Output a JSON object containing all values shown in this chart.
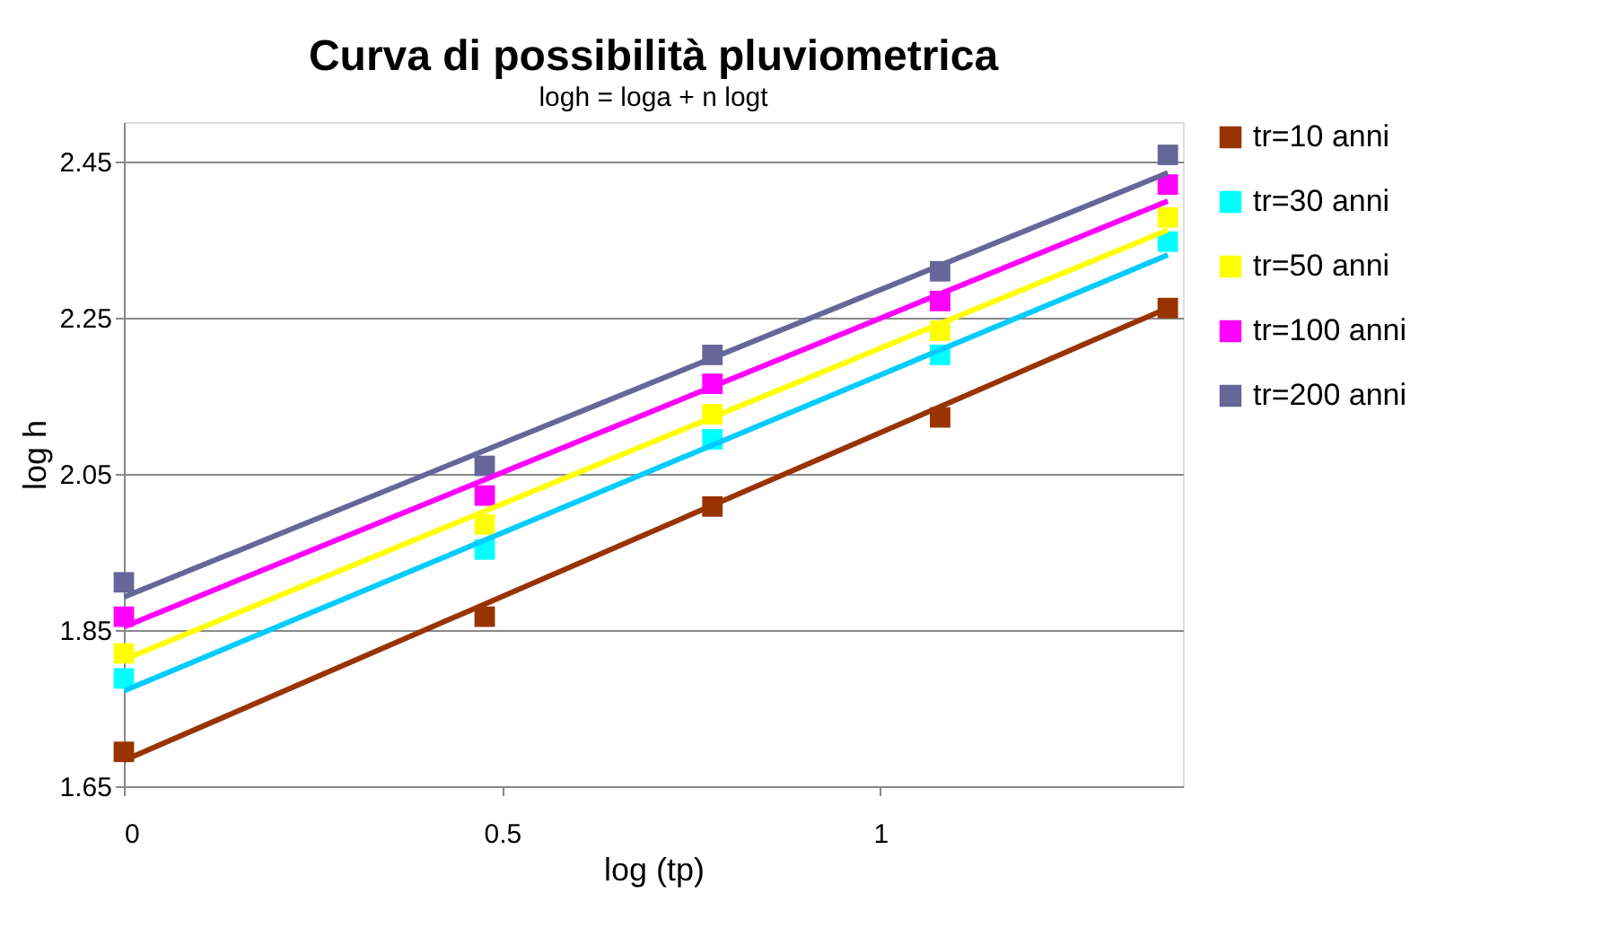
{
  "chart_data": {
    "type": "scatter",
    "title": "Curva di possibilità pluviometrica",
    "subtitle": "logh = loga + n logt",
    "xlabel": "log (tp)",
    "ylabel": "log h",
    "xlim": [
      0,
      1.4
    ],
    "xticks": [
      0,
      0.5,
      1
    ],
    "ylim": [
      1.65,
      2.5
    ],
    "yticks": [
      1.65,
      1.85,
      2.05,
      2.25,
      2.45
    ],
    "grid": "y",
    "legend": "right",
    "marker": "square",
    "series": [
      {
        "name": "tr=10 anni",
        "color": "#993300",
        "x": [
          0,
          0.477,
          0.778,
          1.079,
          1.38
        ],
        "values": [
          1.694,
          1.867,
          2.008,
          2.122,
          2.262
        ]
      },
      {
        "name": "tr=30 anni",
        "color": "#00ffff",
        "x": [
          0,
          0.477,
          0.778,
          1.079,
          1.38
        ],
        "values": [
          1.788,
          1.953,
          2.094,
          2.202,
          2.347
        ]
      },
      {
        "name": "tr=50 anni",
        "color": "#ffff00",
        "x": [
          0,
          0.477,
          0.778,
          1.079,
          1.38
        ],
        "values": [
          1.82,
          1.985,
          2.126,
          2.233,
          2.378
        ]
      },
      {
        "name": "tr=100 anni",
        "color": "#ff00ff",
        "x": [
          0,
          0.477,
          0.778,
          1.079,
          1.38
        ],
        "values": [
          1.867,
          2.022,
          2.165,
          2.271,
          2.42
        ]
      },
      {
        "name": "tr=200 anni",
        "color": "#666699",
        "x": [
          0,
          0.477,
          0.778,
          1.079,
          1.38
        ],
        "values": [
          1.911,
          2.06,
          2.202,
          2.309,
          2.458
        ]
      },
      {
        "type": "line",
        "color": "#993300",
        "marker": "none",
        "x": [
          0,
          1.38
        ],
        "values": [
          1.683,
          2.262
        ]
      },
      {
        "type": "line",
        "color": "#00ccff",
        "marker": "none",
        "x": [
          0,
          1.38
        ],
        "values": [
          1.772,
          2.33
        ]
      },
      {
        "type": "line",
        "color": "#ffff00",
        "marker": "none",
        "x": [
          0,
          1.38
        ],
        "values": [
          1.812,
          2.362
        ]
      },
      {
        "type": "line",
        "color": "#ff00ff",
        "marker": "none",
        "x": [
          0,
          1.38
        ],
        "values": [
          1.854,
          2.399
        ]
      },
      {
        "type": "line",
        "color": "#666699",
        "marker": "none",
        "x": [
          0,
          1.38
        ],
        "values": [
          1.892,
          2.435
        ]
      }
    ]
  }
}
